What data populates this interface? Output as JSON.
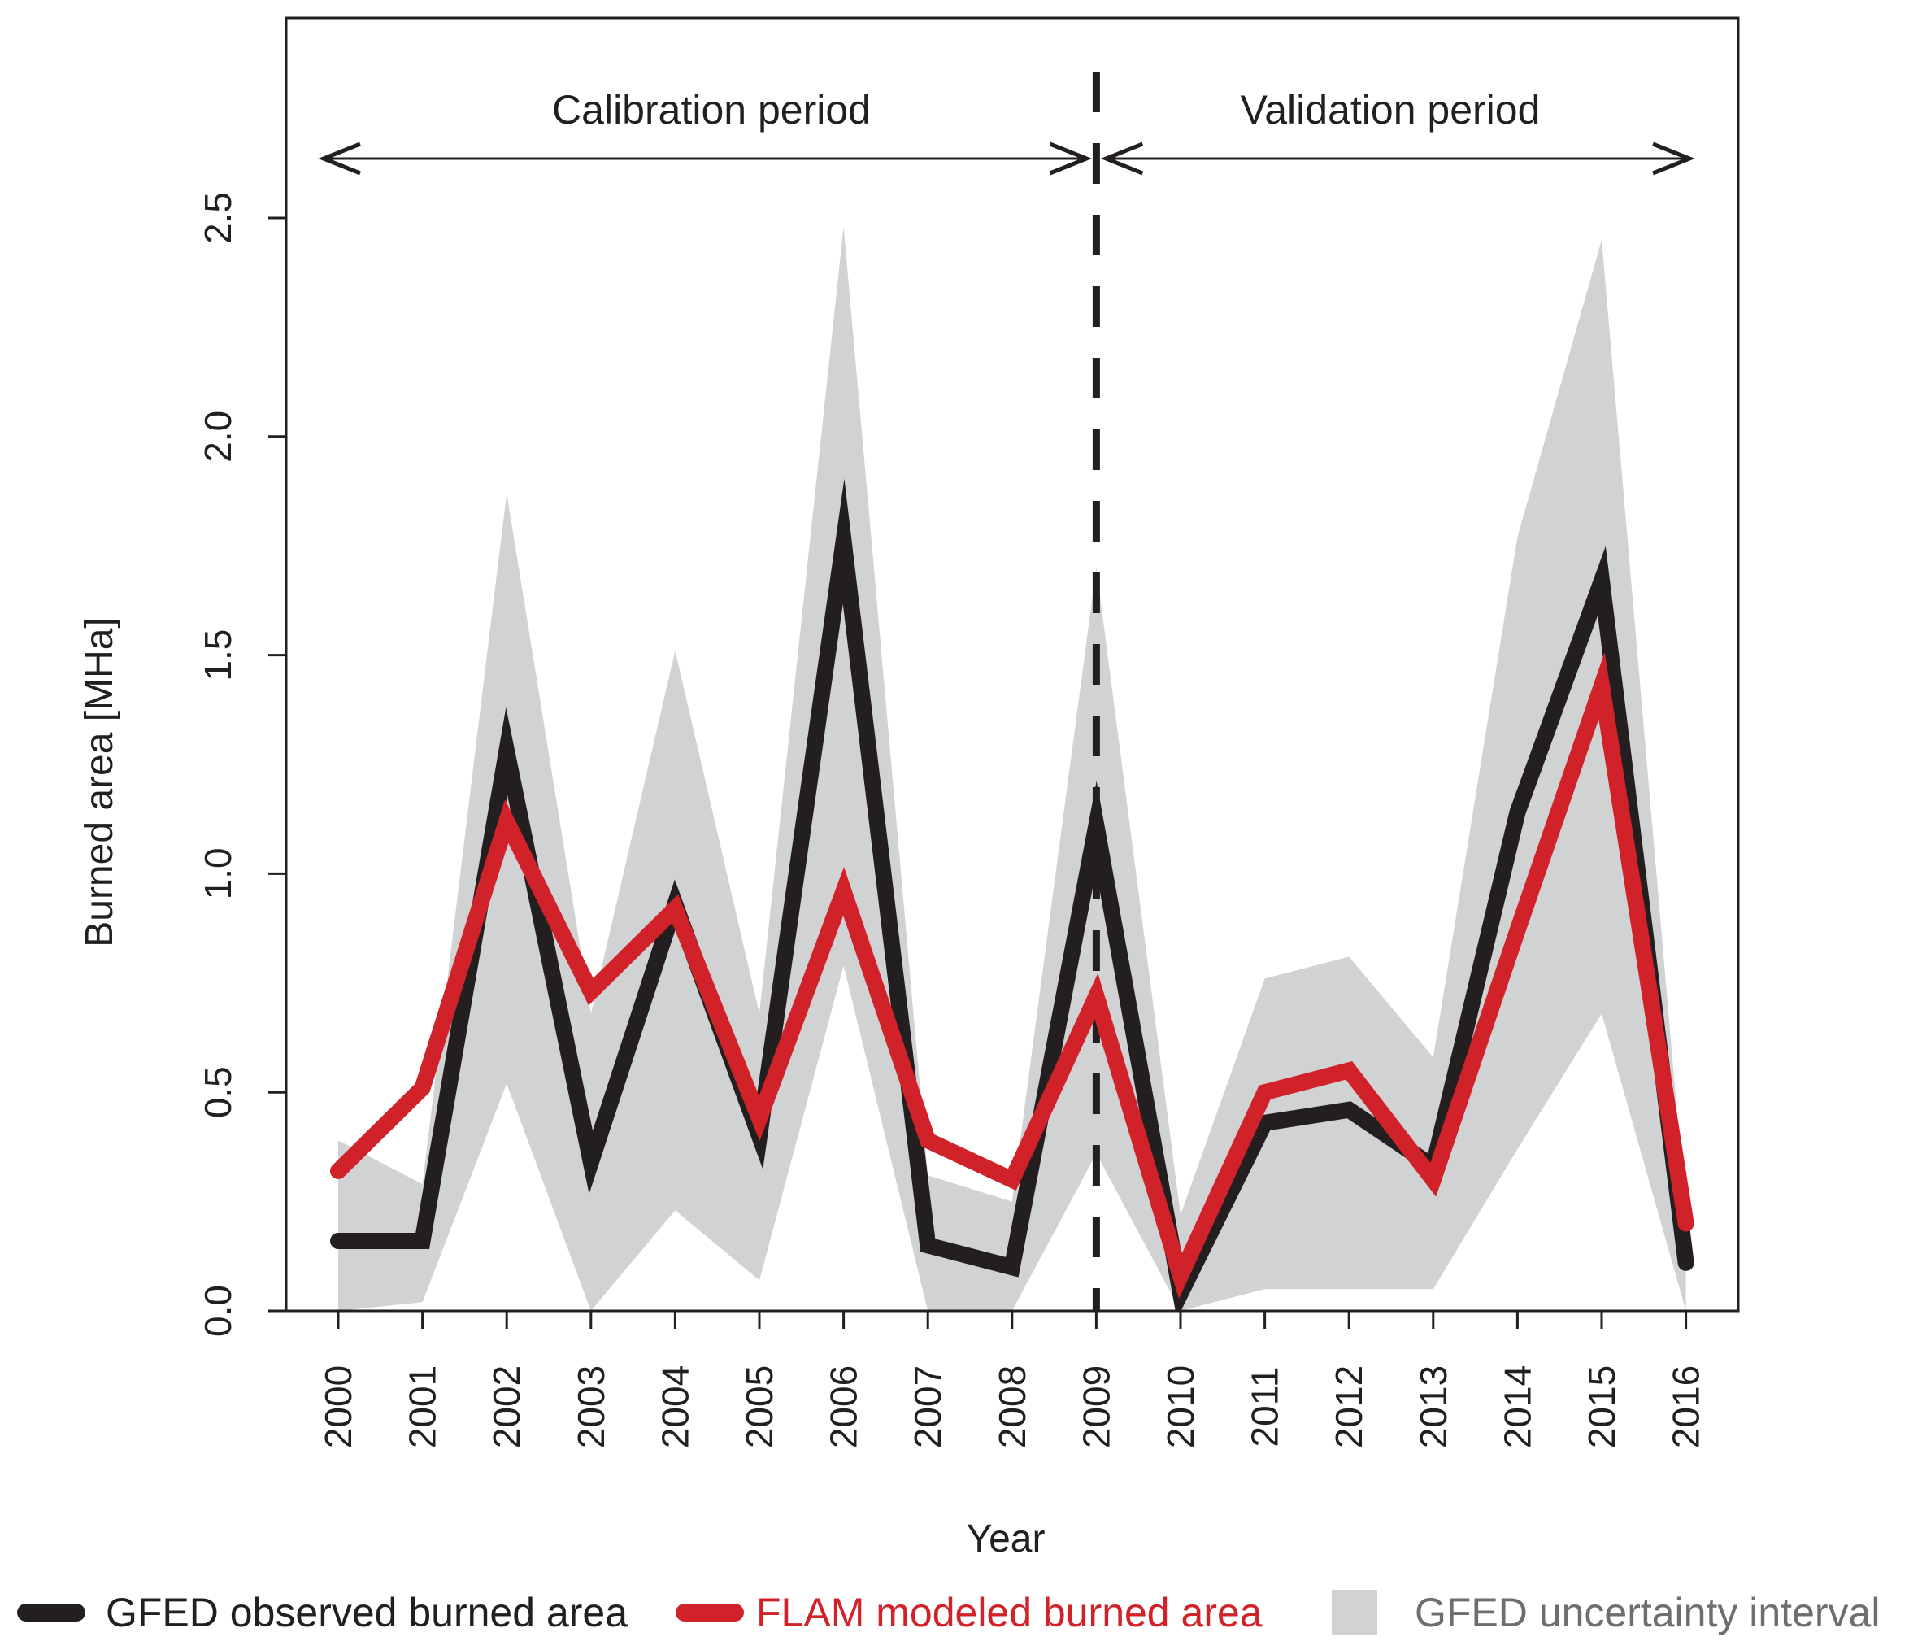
{
  "chart_data": {
    "type": "line",
    "xlabel": "Year",
    "ylabel": "Burned area [MHa]",
    "ylim": [
      0,
      2.9
    ],
    "y_ticks": [
      "0.0",
      "0.5",
      "1.0",
      "1.5",
      "2.0",
      "2.5"
    ],
    "y_tick_values": [
      0,
      0.5,
      1.0,
      1.5,
      2.0,
      2.5
    ],
    "x": [
      "2000",
      "2001",
      "2002",
      "2003",
      "2004",
      "2005",
      "2006",
      "2007",
      "2008",
      "2009",
      "2010",
      "2011",
      "2012",
      "2013",
      "2014",
      "2015",
      "2016"
    ],
    "series": [
      {
        "name": "GFED observed burned area",
        "color": "#231f20",
        "values": [
          0.16,
          0.16,
          1.28,
          0.34,
          0.93,
          0.4,
          1.76,
          0.15,
          0.1,
          1.11,
          0.04,
          0.43,
          0.46,
          0.33,
          1.14,
          1.67,
          0.11
        ]
      },
      {
        "name": "FLAM modeled burned area",
        "color": "#d12229",
        "values": [
          0.32,
          0.51,
          1.12,
          0.73,
          0.92,
          0.44,
          0.96,
          0.39,
          0.3,
          0.72,
          0.08,
          0.5,
          0.55,
          0.3,
          0.87,
          1.43,
          0.2
        ]
      }
    ],
    "uncertainty_band": {
      "name": "GFED uncertainty interval",
      "color": "#d1d2d4",
      "upper": [
        0.39,
        0.29,
        1.87,
        0.68,
        1.51,
        0.68,
        2.48,
        0.31,
        0.25,
        1.7,
        0.22,
        0.76,
        0.81,
        0.58,
        1.77,
        2.45,
        0.22
      ],
      "lower": [
        0.0,
        0.02,
        0.52,
        0.0,
        0.23,
        0.07,
        0.79,
        0.0,
        0.0,
        0.36,
        0.0,
        0.05,
        0.05,
        0.05,
        0.37,
        0.68,
        0.0
      ]
    },
    "divider_year": "2009",
    "annotations": {
      "calibration_label": "Calibration period",
      "validation_label": "Validation period"
    },
    "legend": [
      {
        "label": "GFED observed burned area",
        "color": "#231f20",
        "text_color": "#231f20",
        "kind": "line"
      },
      {
        "label": "FLAM modeled burned area",
        "color": "#d12229",
        "text_color": "#d12229",
        "kind": "line"
      },
      {
        "label": "GFED uncertainty interval",
        "color": "#d1d2d4",
        "text_color": "#6d6e71",
        "kind": "box"
      }
    ]
  }
}
